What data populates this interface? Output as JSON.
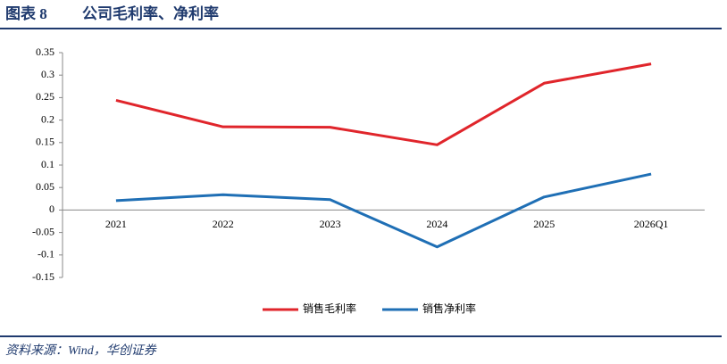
{
  "chart_data": {
    "type": "line",
    "label": "图表 8",
    "title": "公司毛利率、净利率",
    "source": "资料来源：Wind，华创证券",
    "categories": [
      "2021",
      "2022",
      "2023",
      "2024",
      "2025",
      "2026Q1"
    ],
    "series": [
      {
        "name": "销售毛利率",
        "color": "#e0252b",
        "values": [
          0.244,
          0.185,
          0.184,
          0.145,
          0.282,
          0.325
        ]
      },
      {
        "name": "销售净利率",
        "color": "#1f6fb5",
        "values": [
          0.021,
          0.034,
          0.023,
          -0.082,
          0.029,
          0.08
        ]
      }
    ],
    "ylim": [
      -0.15,
      0.35
    ],
    "yticks": [
      0.35,
      0.3,
      0.25,
      0.2,
      0.15,
      0.1,
      0.05,
      0,
      -0.05,
      -0.1,
      -0.15
    ],
    "grid": false,
    "legend": "bottom"
  }
}
